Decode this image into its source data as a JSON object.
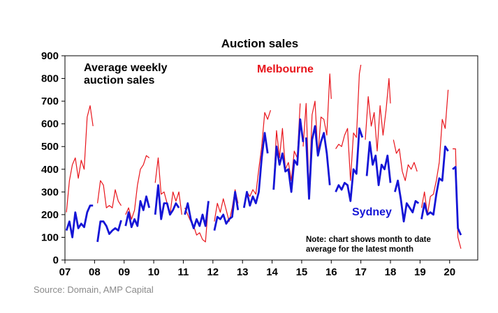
{
  "source": "Source: Domain, AMP Capital",
  "chart_data": {
    "type": "line",
    "title": "Auction sales",
    "annotation": [
      "Average weekly",
      "auction sales"
    ],
    "note": [
      "Note: chart shows month to date",
      "average for the latest month"
    ],
    "xlim": [
      2007,
      2020.95
    ],
    "ylim": [
      0,
      900
    ],
    "x_ticks": [
      {
        "v": 2007,
        "label": "07"
      },
      {
        "v": 2008,
        "label": "08"
      },
      {
        "v": 2009,
        "label": "09"
      },
      {
        "v": 2010,
        "label": "10"
      },
      {
        "v": 2011,
        "label": "11"
      },
      {
        "v": 2012,
        "label": "12"
      },
      {
        "v": 2013,
        "label": "13"
      },
      {
        "v": 2014,
        "label": "14"
      },
      {
        "v": 2015,
        "label": "15"
      },
      {
        "v": 2016,
        "label": "16"
      },
      {
        "v": 2017,
        "label": "17"
      },
      {
        "v": 2018,
        "label": "18"
      },
      {
        "v": 2019,
        "label": "19"
      },
      {
        "v": 2020,
        "label": "20"
      }
    ],
    "y_ticks": [
      0,
      100,
      200,
      300,
      400,
      500,
      600,
      700,
      800,
      900
    ],
    "series": [
      {
        "name": "Melbourne",
        "color": "#e8141b",
        "points": [
          [
            2007.05,
            210
          ],
          [
            2007.15,
            350
          ],
          [
            2007.25,
            420
          ],
          [
            2007.35,
            450
          ],
          [
            2007.45,
            360
          ],
          [
            2007.55,
            440
          ],
          [
            2007.65,
            400
          ],
          [
            2007.75,
            630
          ],
          [
            2007.85,
            680
          ],
          [
            2007.95,
            590
          ],
          null,
          [
            2008.1,
            250
          ],
          [
            2008.2,
            350
          ],
          [
            2008.3,
            330
          ],
          [
            2008.4,
            230
          ],
          [
            2008.5,
            240
          ],
          [
            2008.6,
            230
          ],
          [
            2008.7,
            310
          ],
          [
            2008.8,
            260
          ],
          [
            2008.9,
            240
          ],
          null,
          [
            2009.05,
            200
          ],
          [
            2009.15,
            230
          ],
          [
            2009.25,
            180
          ],
          [
            2009.35,
            220
          ],
          [
            2009.45,
            330
          ],
          [
            2009.55,
            400
          ],
          [
            2009.65,
            420
          ],
          [
            2009.75,
            460
          ],
          [
            2009.85,
            450
          ],
          null,
          [
            2010.05,
            340
          ],
          [
            2010.15,
            450
          ],
          [
            2010.25,
            290
          ],
          [
            2010.35,
            300
          ],
          [
            2010.45,
            250
          ],
          [
            2010.55,
            200
          ],
          [
            2010.65,
            300
          ],
          [
            2010.75,
            260
          ],
          [
            2010.85,
            300
          ],
          [
            2010.95,
            200
          ],
          null,
          [
            2011.05,
            230
          ],
          [
            2011.15,
            200
          ],
          [
            2011.25,
            170
          ],
          [
            2011.35,
            150
          ],
          [
            2011.45,
            110
          ],
          [
            2011.55,
            120
          ],
          [
            2011.65,
            90
          ],
          [
            2011.75,
            80
          ],
          [
            2011.85,
            250
          ],
          null,
          [
            2012.05,
            170
          ],
          [
            2012.15,
            250
          ],
          [
            2012.25,
            210
          ],
          [
            2012.35,
            270
          ],
          [
            2012.45,
            220
          ],
          [
            2012.55,
            170
          ],
          [
            2012.65,
            230
          ],
          [
            2012.75,
            310
          ],
          [
            2012.85,
            250
          ],
          null,
          [
            2013.05,
            240
          ],
          [
            2013.15,
            300
          ],
          [
            2013.25,
            280
          ],
          [
            2013.35,
            310
          ],
          [
            2013.45,
            290
          ],
          [
            2013.55,
            400
          ],
          [
            2013.65,
            500
          ],
          [
            2013.75,
            650
          ],
          [
            2013.85,
            620
          ],
          [
            2013.95,
            660
          ],
          null,
          [
            2014.05,
            320
          ],
          [
            2014.15,
            570
          ],
          [
            2014.25,
            450
          ],
          [
            2014.35,
            580
          ],
          [
            2014.45,
            400
          ],
          [
            2014.55,
            430
          ],
          [
            2014.65,
            350
          ],
          [
            2014.75,
            480
          ],
          [
            2014.85,
            450
          ],
          [
            2014.95,
            690
          ],
          null,
          [
            2015.05,
            500
          ],
          [
            2015.15,
            690
          ],
          [
            2015.25,
            300
          ],
          [
            2015.35,
            640
          ],
          [
            2015.45,
            700
          ],
          [
            2015.55,
            460
          ],
          [
            2015.65,
            630
          ],
          [
            2015.75,
            620
          ],
          [
            2015.85,
            550
          ],
          [
            2015.95,
            820
          ],
          [
            2016.0,
            710
          ],
          null,
          [
            2016.15,
            490
          ],
          [
            2016.25,
            510
          ],
          [
            2016.35,
            500
          ],
          [
            2016.45,
            550
          ],
          [
            2016.55,
            580
          ],
          [
            2016.65,
            350
          ],
          [
            2016.75,
            560
          ],
          [
            2016.85,
            540
          ],
          [
            2016.95,
            820
          ],
          [
            2017.0,
            860
          ],
          null,
          [
            2017.15,
            530
          ],
          [
            2017.25,
            720
          ],
          [
            2017.35,
            590
          ],
          [
            2017.45,
            650
          ],
          [
            2017.55,
            480
          ],
          [
            2017.65,
            680
          ],
          [
            2017.75,
            550
          ],
          [
            2017.85,
            660
          ],
          [
            2017.95,
            800
          ],
          [
            2018.0,
            690
          ],
          null,
          [
            2018.1,
            530
          ],
          [
            2018.2,
            470
          ],
          [
            2018.3,
            490
          ],
          [
            2018.4,
            390
          ],
          [
            2018.5,
            350
          ],
          [
            2018.6,
            420
          ],
          [
            2018.7,
            400
          ],
          [
            2018.8,
            430
          ],
          [
            2018.9,
            390
          ],
          null,
          [
            2019.05,
            230
          ],
          [
            2019.15,
            300
          ],
          [
            2019.25,
            200
          ],
          [
            2019.35,
            280
          ],
          [
            2019.45,
            290
          ],
          [
            2019.55,
            350
          ],
          [
            2019.65,
            430
          ],
          [
            2019.75,
            620
          ],
          [
            2019.85,
            580
          ],
          [
            2019.95,
            750
          ],
          null,
          [
            2020.1,
            490
          ],
          [
            2020.2,
            490
          ],
          [
            2020.28,
            100
          ],
          [
            2020.38,
            50
          ]
        ]
      },
      {
        "name": "Sydney",
        "color": "#1515d6",
        "points": [
          [
            2007.05,
            130
          ],
          [
            2007.15,
            170
          ],
          [
            2007.25,
            100
          ],
          [
            2007.35,
            210
          ],
          [
            2007.45,
            140
          ],
          [
            2007.55,
            160
          ],
          [
            2007.65,
            145
          ],
          [
            2007.75,
            210
          ],
          [
            2007.85,
            240
          ],
          [
            2007.95,
            240
          ],
          null,
          [
            2008.1,
            80
          ],
          [
            2008.2,
            170
          ],
          [
            2008.3,
            170
          ],
          [
            2008.4,
            150
          ],
          [
            2008.5,
            115
          ],
          [
            2008.6,
            130
          ],
          [
            2008.7,
            140
          ],
          [
            2008.8,
            130
          ],
          [
            2008.9,
            175
          ],
          null,
          [
            2009.05,
            150
          ],
          [
            2009.15,
            210
          ],
          [
            2009.25,
            145
          ],
          [
            2009.35,
            180
          ],
          [
            2009.45,
            150
          ],
          [
            2009.55,
            260
          ],
          [
            2009.65,
            220
          ],
          [
            2009.75,
            280
          ],
          [
            2009.85,
            230
          ],
          null,
          [
            2010.05,
            200
          ],
          [
            2010.15,
            330
          ],
          [
            2010.25,
            180
          ],
          [
            2010.35,
            250
          ],
          [
            2010.45,
            250
          ],
          [
            2010.55,
            200
          ],
          [
            2010.65,
            220
          ],
          [
            2010.75,
            250
          ],
          [
            2010.85,
            230
          ],
          null,
          [
            2011.05,
            200
          ],
          [
            2011.15,
            250
          ],
          [
            2011.25,
            180
          ],
          [
            2011.35,
            140
          ],
          [
            2011.45,
            180
          ],
          [
            2011.55,
            150
          ],
          [
            2011.65,
            200
          ],
          [
            2011.75,
            150
          ],
          [
            2011.85,
            260
          ],
          null,
          [
            2012.05,
            130
          ],
          [
            2012.15,
            190
          ],
          [
            2012.25,
            180
          ],
          [
            2012.35,
            200
          ],
          [
            2012.45,
            160
          ],
          [
            2012.55,
            180
          ],
          [
            2012.65,
            190
          ],
          [
            2012.75,
            300
          ],
          [
            2012.85,
            220
          ],
          null,
          [
            2013.05,
            230
          ],
          [
            2013.15,
            300
          ],
          [
            2013.25,
            240
          ],
          [
            2013.35,
            280
          ],
          [
            2013.45,
            250
          ],
          [
            2013.55,
            300
          ],
          [
            2013.65,
            450
          ],
          [
            2013.75,
            560
          ],
          [
            2013.85,
            470
          ],
          null,
          [
            2014.05,
            310
          ],
          [
            2014.15,
            500
          ],
          [
            2014.25,
            420
          ],
          [
            2014.35,
            470
          ],
          [
            2014.45,
            390
          ],
          [
            2014.55,
            400
          ],
          [
            2014.65,
            300
          ],
          [
            2014.75,
            440
          ],
          [
            2014.85,
            420
          ],
          [
            2014.95,
            620
          ],
          [
            2015.05,
            520
          ],
          null,
          [
            2015.15,
            540
          ],
          [
            2015.25,
            270
          ],
          [
            2015.35,
            530
          ],
          [
            2015.45,
            590
          ],
          [
            2015.55,
            460
          ],
          [
            2015.65,
            520
          ],
          [
            2015.75,
            560
          ],
          [
            2015.85,
            470
          ],
          [
            2015.95,
            330
          ],
          null,
          [
            2016.15,
            300
          ],
          [
            2016.25,
            330
          ],
          [
            2016.35,
            310
          ],
          [
            2016.45,
            340
          ],
          [
            2016.55,
            330
          ],
          [
            2016.65,
            260
          ],
          [
            2016.75,
            400
          ],
          [
            2016.85,
            380
          ],
          [
            2016.95,
            580
          ],
          [
            2017.05,
            540
          ],
          null,
          [
            2017.2,
            370
          ],
          [
            2017.3,
            520
          ],
          [
            2017.4,
            420
          ],
          [
            2017.5,
            460
          ],
          [
            2017.6,
            330
          ],
          [
            2017.7,
            420
          ],
          [
            2017.8,
            400
          ],
          [
            2017.9,
            460
          ],
          [
            2018.0,
            340
          ],
          null,
          [
            2018.15,
            300
          ],
          [
            2018.25,
            350
          ],
          [
            2018.35,
            270
          ],
          [
            2018.45,
            170
          ],
          [
            2018.55,
            250
          ],
          [
            2018.65,
            230
          ],
          [
            2018.75,
            210
          ],
          [
            2018.85,
            260
          ],
          [
            2018.95,
            250
          ],
          null,
          [
            2019.05,
            180
          ],
          [
            2019.15,
            250
          ],
          [
            2019.25,
            200
          ],
          [
            2019.35,
            210
          ],
          [
            2019.45,
            200
          ],
          [
            2019.55,
            290
          ],
          [
            2019.65,
            360
          ],
          [
            2019.75,
            350
          ],
          [
            2019.85,
            500
          ],
          [
            2019.95,
            480
          ],
          null,
          [
            2020.1,
            400
          ],
          [
            2020.2,
            410
          ],
          [
            2020.28,
            140
          ],
          [
            2020.38,
            110
          ]
        ]
      }
    ]
  }
}
